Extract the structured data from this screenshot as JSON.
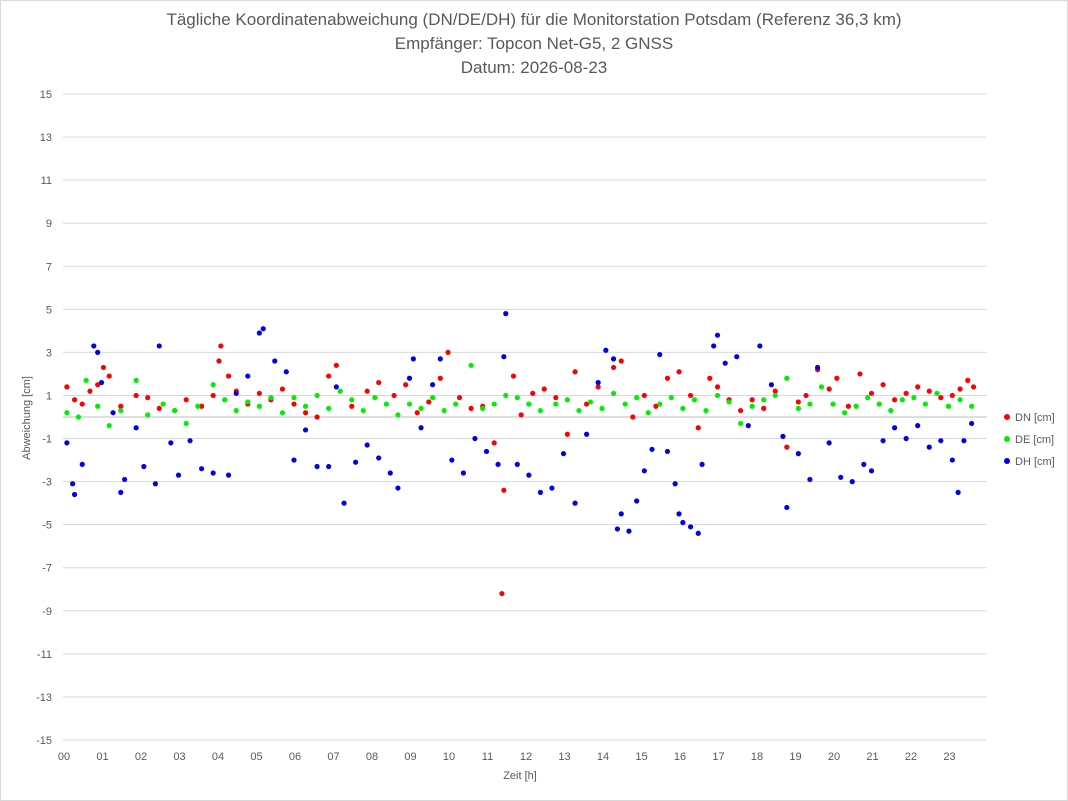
{
  "chart_data": {
    "type": "scatter",
    "title": "Tägliche Koordinatenabweichung (DN/DE/DH) für die Monitorstation Potsdam (Referenz 36,3 km)",
    "subtitle": "Empfänger: Topcon Net-G5, 2 GNSS",
    "date_line": "Datum: 2026-08-23",
    "xlabel": "Zeit [h]",
    "ylabel": "Abweichung [cm]",
    "xlim": [
      0,
      24
    ],
    "ylim": [
      -15,
      15
    ],
    "yticks": [
      -15,
      -13,
      -11,
      -9,
      -7,
      -5,
      -3,
      -1,
      1,
      3,
      5,
      7,
      9,
      11,
      13,
      15
    ],
    "xtick_labels": [
      "00",
      "01",
      "02",
      "03",
      "04",
      "05",
      "06",
      "07",
      "08",
      "09",
      "10",
      "11",
      "12",
      "13",
      "14",
      "15",
      "16",
      "17",
      "18",
      "19",
      "20",
      "21",
      "22",
      "23"
    ],
    "grid": "horizontal",
    "legend_position": "right",
    "series": [
      {
        "name": "DN [cm]",
        "color": "#ff0000",
        "points": [
          [
            0.1,
            1.4
          ],
          [
            0.3,
            0.8
          ],
          [
            0.5,
            0.6
          ],
          [
            0.7,
            1.2
          ],
          [
            0.9,
            1.5
          ],
          [
            1.05,
            2.3
          ],
          [
            1.2,
            1.9
          ],
          [
            1.5,
            0.5
          ],
          [
            1.9,
            1.0
          ],
          [
            2.2,
            0.9
          ],
          [
            2.5,
            0.4
          ],
          [
            2.9,
            0.3
          ],
          [
            3.2,
            0.8
          ],
          [
            3.6,
            0.5
          ],
          [
            3.9,
            1.0
          ],
          [
            4.05,
            2.6
          ],
          [
            4.1,
            3.3
          ],
          [
            4.3,
            1.9
          ],
          [
            4.5,
            1.2
          ],
          [
            4.8,
            0.6
          ],
          [
            5.1,
            1.1
          ],
          [
            5.4,
            0.8
          ],
          [
            5.7,
            1.3
          ],
          [
            6.0,
            0.6
          ],
          [
            6.3,
            0.2
          ],
          [
            6.6,
            0.0
          ],
          [
            6.9,
            1.9
          ],
          [
            7.1,
            2.4
          ],
          [
            7.5,
            0.5
          ],
          [
            7.9,
            1.2
          ],
          [
            8.2,
            1.6
          ],
          [
            8.6,
            1.0
          ],
          [
            8.9,
            1.5
          ],
          [
            9.2,
            0.2
          ],
          [
            9.5,
            0.7
          ],
          [
            9.8,
            1.8
          ],
          [
            10.0,
            3.0
          ],
          [
            10.3,
            0.9
          ],
          [
            10.6,
            0.4
          ],
          [
            10.9,
            0.5
          ],
          [
            11.2,
            -1.2
          ],
          [
            11.4,
            -8.2
          ],
          [
            11.45,
            -3.4
          ],
          [
            11.7,
            1.9
          ],
          [
            11.9,
            0.1
          ],
          [
            12.2,
            1.1
          ],
          [
            12.5,
            1.3
          ],
          [
            12.8,
            0.9
          ],
          [
            13.1,
            -0.8
          ],
          [
            13.3,
            2.1
          ],
          [
            13.6,
            0.6
          ],
          [
            13.9,
            1.4
          ],
          [
            14.3,
            2.3
          ],
          [
            14.5,
            2.6
          ],
          [
            14.8,
            0.0
          ],
          [
            15.1,
            1.0
          ],
          [
            15.4,
            0.5
          ],
          [
            15.7,
            1.8
          ],
          [
            16.0,
            2.1
          ],
          [
            16.3,
            1.0
          ],
          [
            16.5,
            -0.5
          ],
          [
            16.8,
            1.8
          ],
          [
            17.0,
            1.4
          ],
          [
            17.3,
            0.8
          ],
          [
            17.6,
            0.3
          ],
          [
            17.9,
            0.8
          ],
          [
            18.2,
            0.4
          ],
          [
            18.5,
            1.2
          ],
          [
            18.8,
            -1.4
          ],
          [
            19.1,
            0.7
          ],
          [
            19.3,
            1.0
          ],
          [
            19.6,
            2.2
          ],
          [
            19.9,
            1.3
          ],
          [
            20.1,
            1.8
          ],
          [
            20.4,
            0.5
          ],
          [
            20.7,
            2.0
          ],
          [
            21.0,
            1.1
          ],
          [
            21.3,
            1.5
          ],
          [
            21.6,
            0.8
          ],
          [
            21.9,
            1.1
          ],
          [
            22.2,
            1.4
          ],
          [
            22.5,
            1.2
          ],
          [
            22.8,
            0.9
          ],
          [
            23.1,
            1.0
          ],
          [
            23.3,
            1.3
          ],
          [
            23.5,
            1.7
          ],
          [
            23.65,
            1.4
          ]
        ]
      },
      {
        "name": "DE [cm]",
        "color": "#00ee00",
        "points": [
          [
            0.1,
            0.2
          ],
          [
            0.4,
            0.0
          ],
          [
            0.6,
            1.7
          ],
          [
            0.9,
            0.5
          ],
          [
            1.2,
            -0.4
          ],
          [
            1.5,
            0.3
          ],
          [
            1.9,
            1.7
          ],
          [
            2.2,
            0.1
          ],
          [
            2.6,
            0.6
          ],
          [
            2.9,
            0.3
          ],
          [
            3.2,
            -0.3
          ],
          [
            3.5,
            0.5
          ],
          [
            3.9,
            1.5
          ],
          [
            4.2,
            0.8
          ],
          [
            4.5,
            0.3
          ],
          [
            4.8,
            0.7
          ],
          [
            5.1,
            0.5
          ],
          [
            5.4,
            0.9
          ],
          [
            5.7,
            0.2
          ],
          [
            6.0,
            0.9
          ],
          [
            6.3,
            0.5
          ],
          [
            6.6,
            1.0
          ],
          [
            6.9,
            0.4
          ],
          [
            7.2,
            1.2
          ],
          [
            7.5,
            0.8
          ],
          [
            7.8,
            0.3
          ],
          [
            8.1,
            0.9
          ],
          [
            8.4,
            0.6
          ],
          [
            8.7,
            0.1
          ],
          [
            9.0,
            0.6
          ],
          [
            9.3,
            0.4
          ],
          [
            9.6,
            0.9
          ],
          [
            9.9,
            0.3
          ],
          [
            10.2,
            0.6
          ],
          [
            10.6,
            2.4
          ],
          [
            10.9,
            0.4
          ],
          [
            11.2,
            0.6
          ],
          [
            11.5,
            1.0
          ],
          [
            11.8,
            0.9
          ],
          [
            12.1,
            0.6
          ],
          [
            12.4,
            0.3
          ],
          [
            12.8,
            0.6
          ],
          [
            13.1,
            0.8
          ],
          [
            13.4,
            0.3
          ],
          [
            13.7,
            0.7
          ],
          [
            14.0,
            0.4
          ],
          [
            14.3,
            1.1
          ],
          [
            14.6,
            0.6
          ],
          [
            14.9,
            0.9
          ],
          [
            15.2,
            0.2
          ],
          [
            15.5,
            0.6
          ],
          [
            15.8,
            0.9
          ],
          [
            16.1,
            0.4
          ],
          [
            16.4,
            0.8
          ],
          [
            16.7,
            0.3
          ],
          [
            17.0,
            1.0
          ],
          [
            17.3,
            0.7
          ],
          [
            17.6,
            -0.3
          ],
          [
            17.9,
            0.5
          ],
          [
            18.2,
            0.8
          ],
          [
            18.5,
            1.0
          ],
          [
            18.8,
            1.8
          ],
          [
            19.1,
            0.4
          ],
          [
            19.4,
            0.6
          ],
          [
            19.7,
            1.4
          ],
          [
            20.0,
            0.6
          ],
          [
            20.3,
            0.2
          ],
          [
            20.6,
            0.5
          ],
          [
            20.9,
            0.9
          ],
          [
            21.2,
            0.6
          ],
          [
            21.5,
            0.3
          ],
          [
            21.8,
            0.8
          ],
          [
            22.1,
            0.9
          ],
          [
            22.4,
            0.6
          ],
          [
            22.7,
            1.1
          ],
          [
            23.0,
            0.5
          ],
          [
            23.3,
            0.8
          ],
          [
            23.6,
            0.5
          ]
        ]
      },
      {
        "name": "DH [cm]",
        "color": "#0000ee",
        "points": [
          [
            0.1,
            -1.2
          ],
          [
            0.25,
            -3.1
          ],
          [
            0.3,
            -3.6
          ],
          [
            0.5,
            -2.2
          ],
          [
            0.8,
            3.3
          ],
          [
            0.9,
            3.0
          ],
          [
            1.0,
            1.6
          ],
          [
            1.3,
            0.2
          ],
          [
            1.5,
            -3.5
          ],
          [
            1.6,
            -2.9
          ],
          [
            1.9,
            -0.5
          ],
          [
            2.1,
            -2.3
          ],
          [
            2.4,
            -3.1
          ],
          [
            2.5,
            3.3
          ],
          [
            2.8,
            -1.2
          ],
          [
            3.0,
            -2.7
          ],
          [
            3.3,
            -1.1
          ],
          [
            3.6,
            -2.4
          ],
          [
            3.9,
            -2.6
          ],
          [
            4.3,
            -2.7
          ],
          [
            4.5,
            1.1
          ],
          [
            4.8,
            1.9
          ],
          [
            5.1,
            3.9
          ],
          [
            5.2,
            4.1
          ],
          [
            5.5,
            2.6
          ],
          [
            5.8,
            2.1
          ],
          [
            6.0,
            -2.0
          ],
          [
            6.3,
            -0.6
          ],
          [
            6.6,
            -2.3
          ],
          [
            6.9,
            -2.3
          ],
          [
            7.1,
            1.4
          ],
          [
            7.3,
            -4.0
          ],
          [
            7.6,
            -2.1
          ],
          [
            7.9,
            -1.3
          ],
          [
            8.2,
            -1.9
          ],
          [
            8.5,
            -2.6
          ],
          [
            8.7,
            -3.3
          ],
          [
            9.0,
            1.8
          ],
          [
            9.1,
            2.7
          ],
          [
            9.3,
            -0.5
          ],
          [
            9.6,
            1.5
          ],
          [
            9.8,
            2.7
          ],
          [
            10.1,
            -2.0
          ],
          [
            10.4,
            -2.6
          ],
          [
            10.7,
            -1.0
          ],
          [
            11.0,
            -1.6
          ],
          [
            11.3,
            -2.2
          ],
          [
            11.45,
            2.8
          ],
          [
            11.5,
            4.8
          ],
          [
            11.8,
            -2.2
          ],
          [
            12.1,
            -2.7
          ],
          [
            12.4,
            -3.5
          ],
          [
            12.7,
            -3.3
          ],
          [
            13.0,
            -1.7
          ],
          [
            13.3,
            -4.0
          ],
          [
            13.6,
            -0.8
          ],
          [
            13.9,
            1.6
          ],
          [
            14.1,
            3.1
          ],
          [
            14.3,
            2.7
          ],
          [
            14.4,
            -5.2
          ],
          [
            14.5,
            -4.5
          ],
          [
            14.7,
            -5.3
          ],
          [
            14.9,
            -3.9
          ],
          [
            15.1,
            -2.5
          ],
          [
            15.3,
            -1.5
          ],
          [
            15.5,
            2.9
          ],
          [
            15.7,
            -1.6
          ],
          [
            15.9,
            -3.1
          ],
          [
            16.0,
            -4.5
          ],
          [
            16.1,
            -4.9
          ],
          [
            16.3,
            -5.1
          ],
          [
            16.5,
            -5.4
          ],
          [
            16.6,
            -2.2
          ],
          [
            16.9,
            3.3
          ],
          [
            17.0,
            3.8
          ],
          [
            17.2,
            2.5
          ],
          [
            17.5,
            2.8
          ],
          [
            17.8,
            -0.4
          ],
          [
            18.1,
            3.3
          ],
          [
            18.4,
            1.5
          ],
          [
            18.7,
            -0.9
          ],
          [
            18.8,
            -4.2
          ],
          [
            19.1,
            -1.7
          ],
          [
            19.4,
            -2.9
          ],
          [
            19.6,
            2.3
          ],
          [
            19.9,
            -1.2
          ],
          [
            20.2,
            -2.8
          ],
          [
            20.5,
            -3.0
          ],
          [
            20.8,
            -2.2
          ],
          [
            21.0,
            -2.5
          ],
          [
            21.3,
            -1.1
          ],
          [
            21.6,
            -0.5
          ],
          [
            21.9,
            -1.0
          ],
          [
            22.2,
            -0.4
          ],
          [
            22.5,
            -1.4
          ],
          [
            22.8,
            -1.1
          ],
          [
            23.1,
            -2.0
          ],
          [
            23.25,
            -3.5
          ],
          [
            23.4,
            -1.1
          ],
          [
            23.6,
            -0.3
          ]
        ]
      }
    ]
  }
}
